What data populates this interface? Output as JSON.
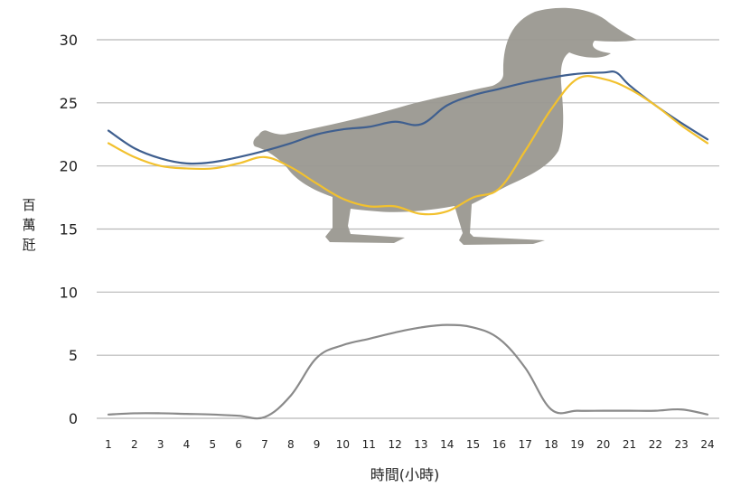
{
  "chart_data": {
    "type": "line",
    "title": "",
    "xlabel": "時間(小時)",
    "ylabel": "百萬瓩",
    "ylabel_chars": [
      "百",
      "萬",
      "瓩"
    ],
    "xlim": [
      1,
      24
    ],
    "ylim": [
      0,
      30
    ],
    "x_ticks": [
      "1",
      "2",
      "3",
      "4",
      "5",
      "6",
      "7",
      "8",
      "9",
      "10",
      "11",
      "12",
      "13",
      "14",
      "15",
      "16",
      "17",
      "18",
      "19",
      "20",
      "21",
      "22",
      "23",
      "24"
    ],
    "y_ticks": [
      "0",
      "5",
      "10",
      "15",
      "20",
      "25",
      "30"
    ],
    "grid": true,
    "legend": "none",
    "background_illustration": "duck-silhouette",
    "series": [
      {
        "color": "#3f5f8f",
        "x": [
          1,
          2,
          3,
          4,
          5,
          6,
          7,
          8,
          9,
          10,
          11,
          12,
          13,
          14,
          15,
          16,
          17,
          18,
          19,
          20,
          20.5,
          21,
          22,
          23,
          24
        ],
        "values": [
          22.8,
          21.4,
          20.6,
          20.2,
          20.3,
          20.7,
          21.2,
          21.8,
          22.5,
          22.9,
          23.1,
          23.5,
          23.3,
          24.8,
          25.6,
          26.1,
          26.6,
          27.0,
          27.3,
          27.4,
          27.4,
          26.4,
          24.8,
          23.4,
          22.1
        ]
      },
      {
        "color": "#f2c12e",
        "x": [
          1,
          2,
          3,
          4,
          5,
          6,
          7,
          8,
          9,
          10,
          11,
          12,
          13,
          14,
          15,
          16,
          17,
          18,
          19,
          20,
          21,
          22,
          23,
          24
        ],
        "values": [
          21.8,
          20.7,
          20.0,
          19.8,
          19.8,
          20.2,
          20.7,
          19.9,
          18.6,
          17.4,
          16.8,
          16.8,
          16.2,
          16.4,
          17.5,
          18.2,
          21.2,
          24.5,
          26.9,
          26.9,
          26.1,
          24.8,
          23.2,
          21.8
        ]
      },
      {
        "color": "#8a8a8a",
        "x": [
          1,
          2,
          3,
          4,
          5,
          6,
          7,
          8,
          9,
          10,
          11,
          12,
          13,
          14,
          15,
          16,
          17,
          18,
          19,
          20,
          21,
          22,
          23,
          24
        ],
        "values": [
          0.3,
          0.4,
          0.4,
          0.35,
          0.3,
          0.2,
          0.1,
          1.8,
          4.8,
          5.8,
          6.3,
          6.8,
          7.2,
          7.4,
          7.2,
          6.3,
          4.0,
          0.7,
          0.6,
          0.6,
          0.6,
          0.6,
          0.7,
          0.3
        ]
      }
    ]
  }
}
